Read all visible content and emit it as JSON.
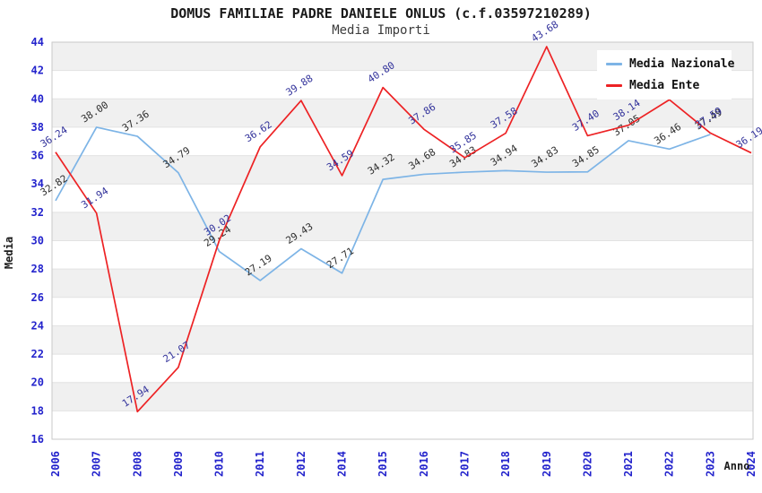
{
  "header": {
    "title": "DOMUS FAMILIAE PADRE DANIELE ONLUS (c.f.03597210289)",
    "subtitle": "Media Importi"
  },
  "colors": {
    "nazionale_line": "#7db4e6",
    "ente_line": "#ed2224",
    "nazionale_point_label": "#2e2e2e",
    "ente_point_label": "#32329b",
    "axis_tick_text": "#2323cc",
    "band_gray": "#f0f0f0",
    "band_white": "#ffffff",
    "gridline": "#e2e2e2",
    "plot_border": "#c9c9c9",
    "legend_background": "#ffffff"
  },
  "legend": {
    "items": [
      {
        "label": "Media Nazionale"
      },
      {
        "label": "Media Ente"
      }
    ]
  },
  "chart_data": {
    "type": "line",
    "title": "DOMUS FAMILIAE PADRE DANIELE ONLUS (c.f.03597210289)",
    "subtitle": "Media Importi",
    "xlabel": "Anno",
    "ylabel": "Media",
    "ylim": [
      16,
      44
    ],
    "ytick_step": 2,
    "grid": true,
    "legend_position": "top-right",
    "categories": [
      "2006",
      "2007",
      "2008",
      "2009",
      "2010",
      "2011",
      "2012",
      "2014",
      "2015",
      "2016",
      "2017",
      "2018",
      "2019",
      "2020",
      "2021",
      "2022",
      "2023",
      "2024"
    ],
    "series": [
      {
        "name": "Media Nazionale",
        "color": "#7db4e6",
        "label_color": "#2e2e2e",
        "values": [
          32.82,
          38.0,
          37.36,
          34.79,
          29.24,
          27.19,
          29.43,
          27.71,
          34.32,
          34.68,
          34.83,
          34.94,
          34.83,
          34.85,
          37.05,
          36.46,
          37.49,
          null
        ]
      },
      {
        "name": "Media Ente",
        "color": "#ed2224",
        "label_color": "#32329b",
        "values": [
          36.24,
          31.94,
          17.94,
          21.07,
          30.02,
          36.62,
          39.88,
          34.59,
          40.8,
          37.86,
          35.85,
          37.58,
          43.68,
          37.4,
          38.14,
          39.94,
          37.59,
          36.19
        ]
      }
    ]
  }
}
